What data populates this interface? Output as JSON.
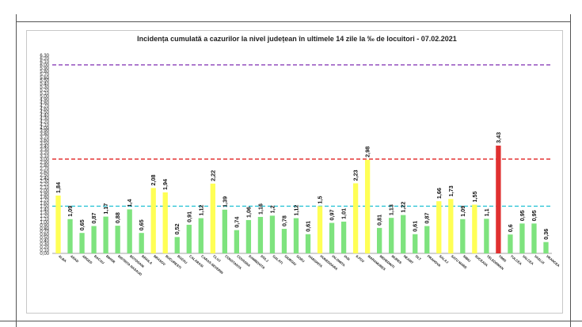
{
  "chart_data": {
    "type": "bar",
    "title": "Incidența cumulată a cazurilor la nivel județean în ultimele 14 zile la ‰ de locuitori - 07.02.2021",
    "xlabel": "",
    "ylabel": "",
    "ylim": [
      0,
      6.3
    ],
    "ytick_step": 0.1,
    "ytick_labels": [
      "0,00",
      "0,10",
      "0,20",
      "0,30",
      "0,40",
      "0,50",
      "0,60",
      "0,70",
      "0,80",
      "0,90",
      "1,00",
      "1,10",
      "1,20",
      "1,30",
      "1,40",
      "1,50",
      "1,60",
      "1,70",
      "1,80",
      "1,90",
      "2,00",
      "2,10",
      "2,20",
      "2,30",
      "2,40",
      "2,50",
      "2,60",
      "2,70",
      "2,80",
      "2,90",
      "3,00",
      "3,10",
      "3,20",
      "3,30",
      "3,40",
      "3,50",
      "3,60",
      "3,70",
      "3,80",
      "3,90",
      "4,00",
      "4,10",
      "4,20",
      "4,30",
      "4,40",
      "4,50",
      "4,60",
      "4,70",
      "4,80",
      "4,90",
      "5,00",
      "5,10",
      "5,20",
      "5,30",
      "5,40",
      "5,50",
      "5,60",
      "5,70",
      "5,80",
      "5,90",
      "6,00",
      "6,10",
      "6,20",
      "6,30"
    ],
    "categories": [
      "ALBA",
      "ARAD",
      "ARGES",
      "BACAU",
      "BIHOR",
      "BISTRITA NASAUD",
      "BOTOSANI",
      "BRAILA",
      "BRASOV",
      "BUCURESTI",
      "BUZAU",
      "CALARASI",
      "CARAS-SEVERIN",
      "CLUJ",
      "CONSTANTA",
      "COVASNA",
      "DAMBOVITA",
      "DOLJ",
      "GALATI",
      "GIURGIU",
      "GORJ",
      "HARGHITA",
      "HUNEDOARA",
      "IALOMITA",
      "IASI",
      "ILFOV",
      "MARAMURES",
      "MEHEDINTI",
      "MURES",
      "NEAMT",
      "OLT",
      "PRAHOVA",
      "SALAJ",
      "SATU MARE",
      "SIBIU",
      "SUCEAVA",
      "TELEORMAN",
      "TIMIS",
      "TULCEA",
      "VALCEA",
      "VASLUI",
      "VRANCEA"
    ],
    "values": [
      1.84,
      1.09,
      0.65,
      0.87,
      1.17,
      0.88,
      1.4,
      0.65,
      2.08,
      1.94,
      0.52,
      0.91,
      1.12,
      2.22,
      1.39,
      0.74,
      1.06,
      1.16,
      1.2,
      0.78,
      1.12,
      0.61,
      1.5,
      0.97,
      1.01,
      2.23,
      2.98,
      0.81,
      1.13,
      1.22,
      0.61,
      0.87,
      1.66,
      1.73,
      1.09,
      1.55,
      1.1,
      3.43,
      0.6,
      0.95,
      0.95,
      0.36
    ],
    "value_labels": [
      "1,84",
      "1,09",
      "0,65",
      "0,87",
      "1,17",
      "0,88",
      "1,4",
      "0,65",
      "2,08",
      "1,94",
      "0,52",
      "0,91",
      "1,12",
      "2,22",
      "1,39",
      "0,74",
      "1,06",
      "1,16",
      "1,2",
      "0,78",
      "1,12",
      "0,61",
      "1,5",
      "0,97",
      "1,01",
      "2,23",
      "2,98",
      "0,81",
      "1,13",
      "1,22",
      "0,61",
      "0,87",
      "1,66",
      "1,73",
      "1,09",
      "1,55",
      "1,1",
      "3,43",
      "0,6",
      "0,95",
      "0,95",
      "0,36"
    ],
    "thresholds": [
      {
        "value": 1.5,
        "color": "#2ec4d6"
      },
      {
        "value": 3.0,
        "color": "#e02020"
      },
      {
        "value": 6.0,
        "color": "#8a3fb8"
      }
    ],
    "colors": {
      "low": "#7ee37e",
      "mid": "#ffff55",
      "high": "#e03030",
      "gridline": "#c0c0c0",
      "axis": "#888888"
    },
    "legend": "none",
    "grid": false
  }
}
